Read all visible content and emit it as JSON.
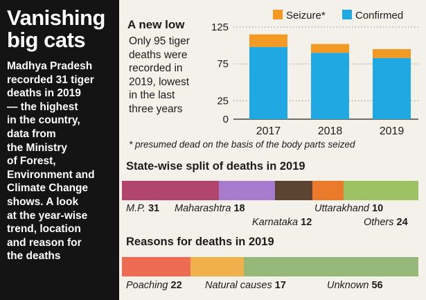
{
  "sidebar": {
    "title_line1": "Vanishing",
    "title_line2": "big cats",
    "lines": [
      "Madhya Pradesh",
      "recorded 31 tiger",
      "deaths in 2019",
      "— the highest",
      "in the country,",
      "data from",
      "the Ministry",
      "of Forest,",
      "Environment and",
      "Climate Change",
      "shows. A look",
      "at the year-wise",
      "trend, location",
      "and reason for",
      "the deaths"
    ]
  },
  "bar_section": {
    "title": "A new low",
    "desc_lines": [
      "Only 95 tiger",
      "deaths were",
      "recorded in",
      "2019, lowest",
      "in the last",
      "three years"
    ],
    "footnote": "* presumed dead on the basis of the body parts seized"
  },
  "state_section": {
    "title": "State-wise split of deaths in 2019",
    "items": [
      {
        "name": "M.P.",
        "value": "31"
      },
      {
        "name": "Maharashtra",
        "value": "18"
      },
      {
        "name": "Karnataka",
        "value": "12"
      },
      {
        "name": "Uttarakhand",
        "value": "10"
      },
      {
        "name": "Others",
        "value": "24"
      }
    ]
  },
  "reason_section": {
    "title": "Reasons for deaths in 2019",
    "items": [
      {
        "name": "Poaching",
        "value": "22"
      },
      {
        "name": "Natural causes",
        "value": "17"
      },
      {
        "name": "Unknown",
        "value": "56"
      }
    ]
  },
  "colors": {
    "sidebar_bg": "#141414",
    "confirmed": "#1fa8e1",
    "seizure": "#f39a25",
    "mp": "#b2456e",
    "maharashtra": "#a77ccf",
    "karnataka": "#5c4433",
    "uttarakhand": "#ec7a2b",
    "others": "#9dc264",
    "poaching": "#ec6b52",
    "natural": "#f0b04b",
    "unknown": "#96b97a"
  },
  "chart_data": [
    {
      "type": "bar",
      "stacked": true,
      "title": "A new low",
      "categories": [
        "2017",
        "2018",
        "2019"
      ],
      "series": [
        {
          "name": "Confirmed",
          "values": [
            98,
            90,
            83
          ]
        },
        {
          "name": "Seizure*",
          "values": [
            17,
            12,
            12
          ]
        }
      ],
      "ylim": [
        0,
        125
      ],
      "yticks": [
        0,
        25,
        75,
        125
      ],
      "legend": "top-right",
      "grid": "dotted"
    },
    {
      "type": "bar",
      "stacked": true,
      "orientation": "horizontal",
      "title": "State-wise split of deaths in 2019",
      "categories": [
        "M.P.",
        "Maharashtra",
        "Karnataka",
        "Uttarakhand",
        "Others"
      ],
      "values": [
        31,
        18,
        12,
        10,
        24
      ]
    },
    {
      "type": "bar",
      "stacked": true,
      "orientation": "horizontal",
      "title": "Reasons for deaths in 2019",
      "categories": [
        "Poaching",
        "Natural causes",
        "Unknown"
      ],
      "values": [
        22,
        17,
        56
      ]
    }
  ]
}
